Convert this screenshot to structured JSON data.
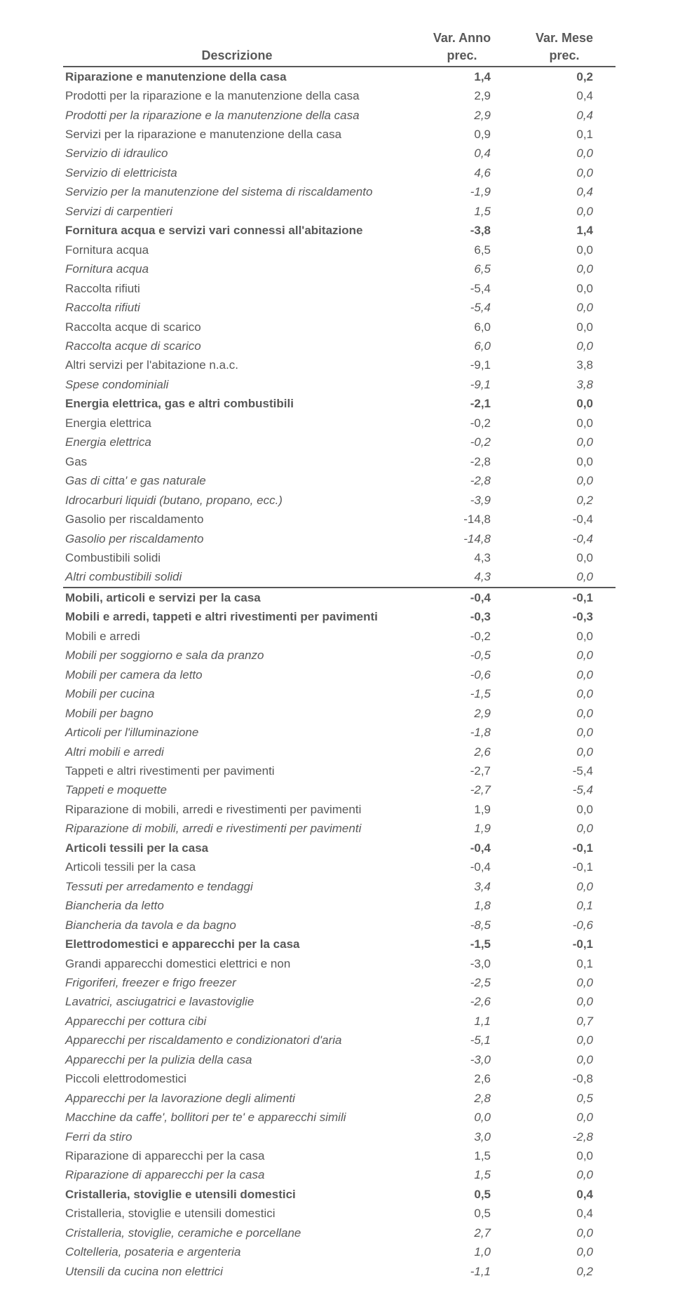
{
  "header": {
    "desc": "Descrizione",
    "col1_line1": "Var. Anno",
    "col1_line2": "prec.",
    "col2_line1": "Var. Mese",
    "col2_line2": "prec."
  },
  "rows": [
    {
      "s": "b",
      "d": "Riparazione e manutenzione della casa",
      "v1": "1,4",
      "v2": "0,2"
    },
    {
      "s": "",
      "d": "Prodotti per  la riparazione e la manutenzione della casa",
      "v1": "2,9",
      "v2": "0,4"
    },
    {
      "s": "i",
      "d": "Prodotti per la riparazione e la manutenzione della casa",
      "v1": "2,9",
      "v2": "0,4"
    },
    {
      "s": "",
      "d": "Servizi per la riparazione e manutenzione della casa",
      "v1": "0,9",
      "v2": "0,1"
    },
    {
      "s": "i",
      "d": "Servizio di idraulico",
      "v1": "0,4",
      "v2": "0,0"
    },
    {
      "s": "i",
      "d": "Servizio di elettricista",
      "v1": "4,6",
      "v2": "0,0"
    },
    {
      "s": "i",
      "d": "Servizio per la manutenzione del sistema di riscaldamento",
      "v1": "-1,9",
      "v2": "0,4"
    },
    {
      "s": "i",
      "d": "Servizi di carpentieri",
      "v1": "1,5",
      "v2": "0,0"
    },
    {
      "s": "b",
      "d": "Fornitura acqua e servizi vari connessi all'abitazione",
      "v1": "-3,8",
      "v2": "1,4"
    },
    {
      "s": "",
      "d": "Fornitura acqua",
      "v1": "6,5",
      "v2": "0,0"
    },
    {
      "s": "i",
      "d": "Fornitura acqua",
      "v1": "6,5",
      "v2": "0,0"
    },
    {
      "s": "",
      "d": "Raccolta rifiuti",
      "v1": "-5,4",
      "v2": "0,0"
    },
    {
      "s": "i",
      "d": "Raccolta rifiuti",
      "v1": "-5,4",
      "v2": "0,0"
    },
    {
      "s": "",
      "d": "Raccolta acque di scarico",
      "v1": "6,0",
      "v2": "0,0"
    },
    {
      "s": "i",
      "d": "Raccolta acque di scarico",
      "v1": "6,0",
      "v2": "0,0"
    },
    {
      "s": "",
      "d": "Altri servizi per l'abitazione n.a.c.",
      "v1": "-9,1",
      "v2": "3,8"
    },
    {
      "s": "i",
      "d": "Spese condominiali",
      "v1": "-9,1",
      "v2": "3,8"
    },
    {
      "s": "b",
      "d": "Energia elettrica, gas e altri combustibili",
      "v1": "-2,1",
      "v2": "0,0"
    },
    {
      "s": "",
      "d": "Energia elettrica",
      "v1": "-0,2",
      "v2": "0,0"
    },
    {
      "s": "i",
      "d": "Energia elettrica",
      "v1": "-0,2",
      "v2": "0,0"
    },
    {
      "s": "",
      "d": "Gas",
      "v1": "-2,8",
      "v2": "0,0"
    },
    {
      "s": "i",
      "d": "Gas di citta' e gas naturale",
      "v1": "-2,8",
      "v2": "0,0"
    },
    {
      "s": "i",
      "d": "Idrocarburi liquidi (butano, propano, ecc.)",
      "v1": "-3,9",
      "v2": "0,2"
    },
    {
      "s": "",
      "d": "Gasolio  per riscaldamento",
      "v1": "-14,8",
      "v2": "-0,4"
    },
    {
      "s": "i",
      "d": "Gasolio  per riscaldamento",
      "v1": "-14,8",
      "v2": "-0,4"
    },
    {
      "s": "",
      "d": "Combustibili solidi",
      "v1": "4,3",
      "v2": "0,0"
    },
    {
      "s": "i",
      "d": "Altri combustibili solidi",
      "v1": "4,3",
      "v2": "0,0"
    },
    {
      "s": "b",
      "sect": true,
      "d": "Mobili, articoli e servizi per la casa",
      "v1": "-0,4",
      "v2": "-0,1"
    },
    {
      "s": "b",
      "d": "Mobili e arredi, tappeti e altri rivestimenti per pavimenti",
      "v1": "-0,3",
      "v2": "-0,3"
    },
    {
      "s": "",
      "d": "Mobili e arredi",
      "v1": "-0,2",
      "v2": "0,0"
    },
    {
      "s": "i",
      "d": "Mobili per soggiorno e sala da pranzo",
      "v1": "-0,5",
      "v2": "0,0"
    },
    {
      "s": "i",
      "d": "Mobili per camera da letto",
      "v1": "-0,6",
      "v2": "0,0"
    },
    {
      "s": "i",
      "d": "Mobili per cucina",
      "v1": "-1,5",
      "v2": "0,0"
    },
    {
      "s": "i",
      "d": "Mobili per bagno",
      "v1": "2,9",
      "v2": "0,0"
    },
    {
      "s": "i",
      "d": "Articoli per l'illuminazione",
      "v1": "-1,8",
      "v2": "0,0"
    },
    {
      "s": "i",
      "d": "Altri mobili e arredi",
      "v1": "2,6",
      "v2": "0,0"
    },
    {
      "s": "",
      "d": "Tappeti e altri rivestimenti per pavimenti",
      "v1": "-2,7",
      "v2": "-5,4"
    },
    {
      "s": "i",
      "d": "Tappeti e moquette",
      "v1": "-2,7",
      "v2": "-5,4"
    },
    {
      "s": "",
      "d": "Riparazione di mobili, arredi e rivestimenti per pavimenti",
      "v1": "1,9",
      "v2": "0,0"
    },
    {
      "s": "i",
      "d": "Riparazione di mobili, arredi e rivestimenti per pavimenti",
      "v1": "1,9",
      "v2": "0,0"
    },
    {
      "s": "b",
      "d": "Articoli tessili per la casa",
      "v1": "-0,4",
      "v2": "-0,1"
    },
    {
      "s": "",
      "d": "Articoli tessili per la casa",
      "v1": "-0,4",
      "v2": "-0,1"
    },
    {
      "s": "i",
      "d": "Tessuti per arredamento e tendaggi",
      "v1": "3,4",
      "v2": "0,0"
    },
    {
      "s": "i",
      "d": "Biancheria da letto",
      "v1": "1,8",
      "v2": "0,1"
    },
    {
      "s": "i",
      "d": "Biancheria da tavola e da bagno",
      "v1": "-8,5",
      "v2": "-0,6"
    },
    {
      "s": "b",
      "d": "Elettrodomestici e apparecchi per la casa",
      "v1": "-1,5",
      "v2": "-0,1"
    },
    {
      "s": "",
      "d": "Grandi apparecchi domestici elettrici e non",
      "v1": "-3,0",
      "v2": "0,1"
    },
    {
      "s": "i",
      "d": "Frigoriferi, freezer e frigo freezer",
      "v1": "-2,5",
      "v2": "0,0"
    },
    {
      "s": "i",
      "d": "Lavatrici, asciugatrici e lavastoviglie",
      "v1": "-2,6",
      "v2": "0,0"
    },
    {
      "s": "i",
      "d": "Apparecchi per cottura cibi",
      "v1": "1,1",
      "v2": "0,7"
    },
    {
      "s": "i",
      "d": "Apparecchi per riscaldamento e condizionatori d'aria",
      "v1": "-5,1",
      "v2": "0,0"
    },
    {
      "s": "i",
      "d": "Apparecchi per la pulizia della casa",
      "v1": "-3,0",
      "v2": "0,0"
    },
    {
      "s": "",
      "d": "Piccoli elettrodomestici",
      "v1": "2,6",
      "v2": "-0,8"
    },
    {
      "s": "i",
      "d": "Apparecchi per la lavorazione degli alimenti",
      "v1": "2,8",
      "v2": "0,5"
    },
    {
      "s": "i",
      "d": "Macchine da caffe', bollitori per te' e apparecchi simili",
      "v1": "0,0",
      "v2": "0,0"
    },
    {
      "s": "i",
      "d": "Ferri da stiro",
      "v1": "3,0",
      "v2": "-2,8"
    },
    {
      "s": "",
      "d": "Riparazione di apparecchi per la casa",
      "v1": "1,5",
      "v2": "0,0"
    },
    {
      "s": "i",
      "d": "Riparazione di apparecchi per la casa",
      "v1": "1,5",
      "v2": "0,0"
    },
    {
      "s": "b",
      "d": "Cristalleria, stoviglie e utensili domestici",
      "v1": "0,5",
      "v2": "0,4"
    },
    {
      "s": "",
      "d": "Cristalleria, stoviglie e utensili domestici",
      "v1": "0,5",
      "v2": "0,4"
    },
    {
      "s": "i",
      "d": "Cristalleria, stoviglie, ceramiche e porcellane",
      "v1": "2,7",
      "v2": "0,0"
    },
    {
      "s": "i",
      "d": "Coltelleria, posateria e argenteria",
      "v1": "1,0",
      "v2": "0,0"
    },
    {
      "s": "i",
      "d": "Utensili da cucina non elettrici",
      "v1": "-1,1",
      "v2": "0,2"
    }
  ]
}
